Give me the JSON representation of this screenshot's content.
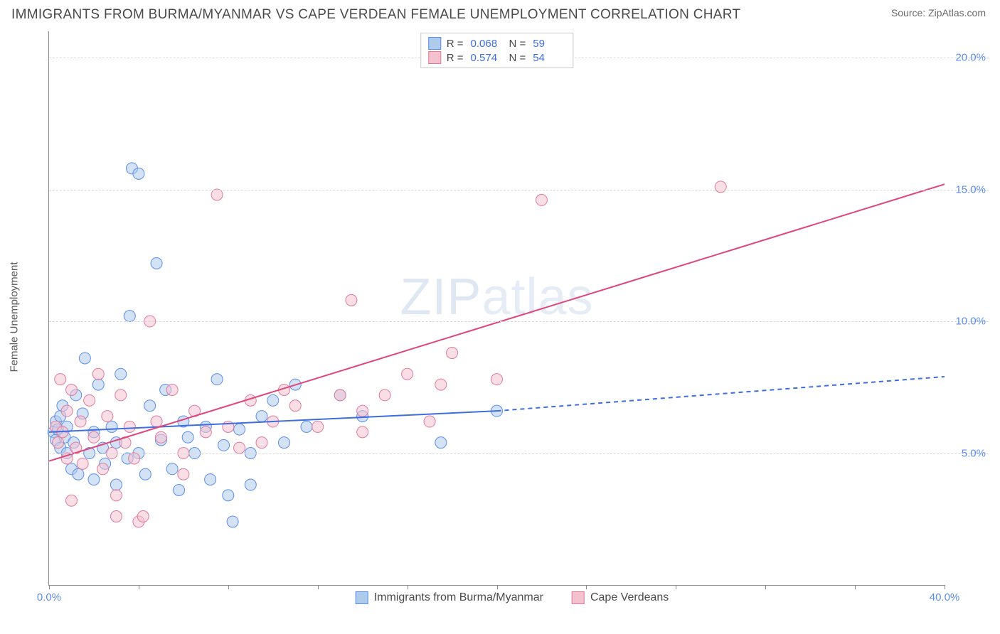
{
  "title": "IMMIGRANTS FROM BURMA/MYANMAR VS CAPE VERDEAN FEMALE UNEMPLOYMENT CORRELATION CHART",
  "source_label": "Source: ",
  "source_name": "ZipAtlas.com",
  "watermark": "ZIPatlas",
  "ylabel": "Female Unemployment",
  "chart": {
    "type": "scatter",
    "xlim": [
      0,
      40
    ],
    "ylim": [
      0,
      21
    ],
    "x_ticks": [
      0,
      4,
      8,
      12,
      16,
      20,
      24,
      28,
      32,
      36,
      40
    ],
    "x_tick_labels": {
      "0": "0.0%",
      "40": "40.0%"
    },
    "y_gridlines": [
      5,
      10,
      15,
      20
    ],
    "y_tick_labels": {
      "5": "5.0%",
      "10": "10.0%",
      "15": "15.0%",
      "20": "20.0%"
    },
    "background_color": "#ffffff",
    "grid_color": "#d8d8d8",
    "axis_color": "#888888",
    "tick_label_color": "#5b8def",
    "marker_radius": 8,
    "marker_opacity": 0.55,
    "series": [
      {
        "name": "Immigrants from Burma/Myanmar",
        "fill": "#aecbeb",
        "stroke": "#5b8def",
        "R": "0.068",
        "N": "59",
        "trend": {
          "x1": 0,
          "y1": 5.8,
          "x2": 20,
          "y2": 6.6,
          "x2_dash": 40,
          "y2_dash": 7.9,
          "color": "#3d6de0",
          "width": 2
        },
        "points": [
          [
            0.2,
            5.8
          ],
          [
            0.3,
            6.2
          ],
          [
            0.3,
            5.5
          ],
          [
            0.4,
            5.9
          ],
          [
            0.5,
            6.4
          ],
          [
            0.5,
            5.2
          ],
          [
            0.6,
            6.8
          ],
          [
            0.7,
            5.6
          ],
          [
            0.8,
            6.0
          ],
          [
            0.8,
            5.0
          ],
          [
            1.0,
            4.4
          ],
          [
            1.1,
            5.4
          ],
          [
            1.2,
            7.2
          ],
          [
            1.3,
            4.2
          ],
          [
            1.5,
            6.5
          ],
          [
            1.6,
            8.6
          ],
          [
            1.8,
            5.0
          ],
          [
            2.0,
            4.0
          ],
          [
            2.0,
            5.8
          ],
          [
            2.2,
            7.6
          ],
          [
            2.4,
            5.2
          ],
          [
            2.5,
            4.6
          ],
          [
            2.8,
            6.0
          ],
          [
            3.0,
            3.8
          ],
          [
            3.0,
            5.4
          ],
          [
            3.2,
            8.0
          ],
          [
            3.5,
            4.8
          ],
          [
            3.6,
            10.2
          ],
          [
            3.7,
            15.8
          ],
          [
            4.0,
            5.0
          ],
          [
            4.0,
            15.6
          ],
          [
            4.3,
            4.2
          ],
          [
            4.5,
            6.8
          ],
          [
            4.8,
            12.2
          ],
          [
            5.0,
            5.5
          ],
          [
            5.2,
            7.4
          ],
          [
            5.5,
            4.4
          ],
          [
            5.8,
            3.6
          ],
          [
            6.0,
            6.2
          ],
          [
            6.2,
            5.6
          ],
          [
            6.5,
            5.0
          ],
          [
            7.0,
            6.0
          ],
          [
            7.2,
            4.0
          ],
          [
            7.5,
            7.8
          ],
          [
            7.8,
            5.3
          ],
          [
            8.0,
            3.4
          ],
          [
            8.2,
            2.4
          ],
          [
            8.5,
            5.9
          ],
          [
            9.0,
            3.8
          ],
          [
            9.0,
            5.0
          ],
          [
            9.5,
            6.4
          ],
          [
            10.0,
            7.0
          ],
          [
            10.5,
            5.4
          ],
          [
            11.0,
            7.6
          ],
          [
            11.5,
            6.0
          ],
          [
            13.0,
            7.2
          ],
          [
            14.0,
            6.4
          ],
          [
            17.5,
            5.4
          ],
          [
            20.0,
            6.6
          ]
        ]
      },
      {
        "name": "Cape Verdeans",
        "fill": "#f4c2cf",
        "stroke": "#e27a9a",
        "R": "0.574",
        "N": "54",
        "trend": {
          "x1": 0,
          "y1": 4.7,
          "x2": 40,
          "y2": 15.2,
          "color": "#e0457a",
          "width": 2
        },
        "points": [
          [
            0.3,
            6.0
          ],
          [
            0.4,
            5.4
          ],
          [
            0.5,
            7.8
          ],
          [
            0.6,
            5.8
          ],
          [
            0.8,
            6.6
          ],
          [
            0.8,
            4.8
          ],
          [
            1.0,
            7.4
          ],
          [
            1.2,
            5.2
          ],
          [
            1.4,
            6.2
          ],
          [
            1.5,
            4.6
          ],
          [
            1.8,
            7.0
          ],
          [
            2.0,
            5.6
          ],
          [
            2.2,
            8.0
          ],
          [
            2.4,
            4.4
          ],
          [
            2.6,
            6.4
          ],
          [
            2.8,
            5.0
          ],
          [
            3.0,
            2.6
          ],
          [
            3.2,
            7.2
          ],
          [
            3.4,
            5.4
          ],
          [
            3.6,
            6.0
          ],
          [
            3.8,
            4.8
          ],
          [
            4.0,
            2.4
          ],
          [
            4.2,
            2.6
          ],
          [
            4.5,
            10.0
          ],
          [
            4.8,
            6.2
          ],
          [
            5.0,
            5.6
          ],
          [
            5.5,
            7.4
          ],
          [
            6.0,
            5.0
          ],
          [
            6.5,
            6.6
          ],
          [
            7.0,
            5.8
          ],
          [
            7.5,
            14.8
          ],
          [
            8.0,
            6.0
          ],
          [
            8.5,
            5.2
          ],
          [
            9.0,
            7.0
          ],
          [
            9.5,
            5.4
          ],
          [
            10.0,
            6.2
          ],
          [
            10.5,
            7.4
          ],
          [
            11.0,
            6.8
          ],
          [
            12.0,
            6.0
          ],
          [
            13.0,
            7.2
          ],
          [
            13.5,
            10.8
          ],
          [
            14.0,
            5.8
          ],
          [
            15.0,
            7.2
          ],
          [
            16.0,
            8.0
          ],
          [
            17.0,
            6.2
          ],
          [
            17.5,
            7.6
          ],
          [
            18.0,
            8.8
          ],
          [
            20.0,
            7.8
          ],
          [
            22.0,
            14.6
          ],
          [
            30.0,
            15.1
          ],
          [
            14.0,
            6.6
          ],
          [
            6.0,
            4.2
          ],
          [
            3.0,
            3.4
          ],
          [
            1.0,
            3.2
          ]
        ]
      }
    ]
  },
  "legend_top": {
    "R_label": "R =",
    "N_label": "N ="
  },
  "legend_bottom_labels": [
    "Immigrants from Burma/Myanmar",
    "Cape Verdeans"
  ]
}
